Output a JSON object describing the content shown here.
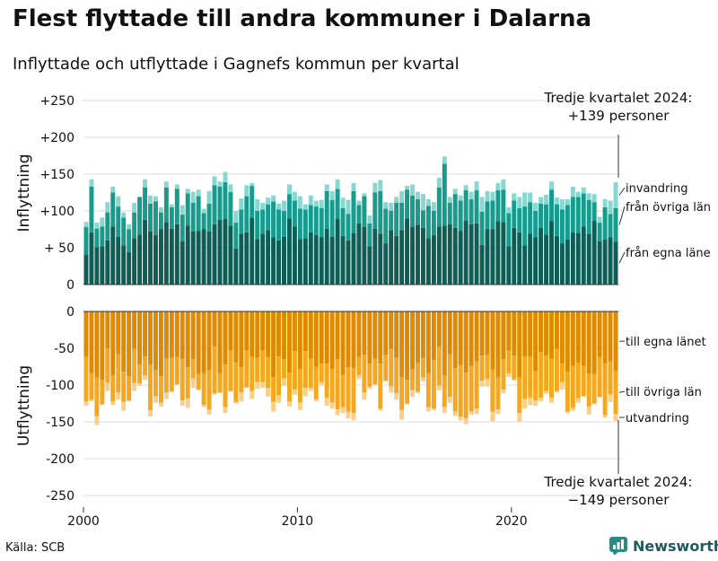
{
  "title": "Flest flyttade till andra kommuner i Dalarna",
  "subtitle": "Inflyttade och utflyttade i Gagnefs kommun per kvartal",
  "source": "Källa: SCB",
  "brand": "Newsworthy",
  "chart_data": {
    "type": "bar",
    "stacked": true,
    "x_start_year": 2000,
    "quarters_per_year": 4,
    "xticks": [
      "2000",
      "2010",
      "2020"
    ],
    "top_panel": {
      "ylabel": "Inflyttning",
      "ylim": [
        0,
        250
      ],
      "yticks": [
        "0",
        "+ 50",
        "+100",
        "+150",
        "+200",
        "+250"
      ],
      "annotation_line1": "Tredje kvartalet 2024:",
      "annotation_line2": "+139 personer",
      "series": [
        {
          "name": "från egna läne",
          "color": "#0e5e56",
          "values": [
            41,
            71,
            51,
            52,
            60,
            79,
            65,
            53,
            44,
            63,
            68,
            88,
            72,
            67,
            75,
            85,
            76,
            82,
            59,
            80,
            72,
            73,
            75,
            72,
            82,
            88,
            89,
            80,
            49,
            69,
            71,
            91,
            62,
            69,
            74,
            64,
            60,
            65,
            90,
            79,
            62,
            63,
            71,
            67,
            64,
            76,
            65,
            89,
            66,
            60,
            70,
            83,
            78,
            52,
            76,
            69,
            56,
            74,
            66,
            74,
            90,
            78,
            81,
            77,
            63,
            67,
            79,
            80,
            82,
            77,
            73,
            87,
            82,
            83,
            54,
            75,
            75,
            86,
            85,
            52,
            77,
            71,
            53,
            69,
            64,
            77,
            68,
            86,
            66,
            56,
            61,
            71,
            70,
            79,
            69,
            87,
            59,
            61,
            64,
            58
          ]
        },
        {
          "name": "från övriga län",
          "color": "#179b8c",
          "values": [
            37,
            62,
            25,
            27,
            38,
            46,
            41,
            38,
            31,
            35,
            51,
            44,
            38,
            46,
            23,
            47,
            29,
            48,
            36,
            44,
            39,
            47,
            22,
            38,
            53,
            45,
            50,
            46,
            35,
            33,
            49,
            43,
            38,
            33,
            35,
            49,
            42,
            35,
            33,
            35,
            41,
            39,
            37,
            39,
            40,
            51,
            50,
            41,
            38,
            36,
            57,
            25,
            42,
            31,
            49,
            58,
            47,
            26,
            45,
            37,
            39,
            43,
            35,
            24,
            44,
            33,
            53,
            84,
            29,
            46,
            41,
            41,
            34,
            45,
            45,
            38,
            39,
            42,
            44,
            45,
            37,
            33,
            53,
            43,
            36,
            33,
            41,
            43,
            43,
            46,
            47,
            48,
            49,
            45,
            46,
            25,
            25,
            44,
            32,
            46
          ]
        },
        {
          "name": "invandring",
          "color": "#88d8cf",
          "values": [
            7,
            10,
            8,
            12,
            14,
            8,
            14,
            7,
            7,
            13,
            0,
            11,
            11,
            7,
            7,
            8,
            4,
            6,
            13,
            6,
            15,
            9,
            6,
            17,
            12,
            7,
            14,
            10,
            16,
            15,
            15,
            4,
            16,
            9,
            9,
            8,
            8,
            14,
            13,
            12,
            17,
            7,
            13,
            8,
            11,
            9,
            12,
            13,
            14,
            19,
            11,
            6,
            4,
            11,
            13,
            15,
            9,
            11,
            8,
            16,
            5,
            15,
            10,
            22,
            9,
            12,
            13,
            10,
            8,
            7,
            7,
            7,
            10,
            12,
            20,
            14,
            12,
            10,
            14,
            8,
            10,
            15,
            19,
            13,
            11,
            9,
            13,
            11,
            9,
            14,
            8,
            14,
            7,
            8,
            9,
            11,
            8,
            11,
            18,
            35
          ]
        }
      ]
    },
    "bottom_panel": {
      "ylabel": "Utflyttning",
      "ylim": [
        -250,
        0
      ],
      "yticks": [
        "0",
        "-50",
        "-100",
        "-150",
        "-200",
        "-250"
      ],
      "annotation_line1": "Tredje kvartalet 2024:",
      "annotation_line2": "−149 personer",
      "series": [
        {
          "name": "till egna länet",
          "color": "#e08a00",
          "values": [
            -62,
            -84,
            -90,
            -93,
            -50,
            -87,
            -58,
            -82,
            -88,
            -51,
            -72,
            -61,
            -72,
            -80,
            -88,
            -64,
            -63,
            -62,
            -64,
            -76,
            -65,
            -85,
            -84,
            -80,
            -48,
            -84,
            -72,
            -53,
            -69,
            -76,
            -53,
            -62,
            -63,
            -53,
            -62,
            -89,
            -61,
            -65,
            -83,
            -54,
            -78,
            -54,
            -64,
            -75,
            -71,
            -71,
            -78,
            -65,
            -86,
            -76,
            -77,
            -62,
            -59,
            -71,
            -64,
            -71,
            -59,
            -51,
            -63,
            -89,
            -93,
            -79,
            -70,
            -63,
            -84,
            -66,
            -48,
            -87,
            -58,
            -77,
            -73,
            -83,
            -74,
            -68,
            -60,
            -59,
            -79,
            -90,
            -65,
            -53,
            -60,
            -89,
            -61,
            -61,
            -81,
            -55,
            -60,
            -64,
            -51,
            -71,
            -82,
            -74,
            -70,
            -74,
            -85,
            -85,
            -62,
            -71,
            -68,
            -81
          ]
        },
        {
          "name": "till övriga län",
          "color": "#f5a81f",
          "values": [
            -60,
            -36,
            -52,
            -33,
            -47,
            -35,
            -52,
            -41,
            -33,
            -46,
            -26,
            -26,
            -62,
            -35,
            -36,
            -46,
            -45,
            -37,
            -57,
            -42,
            -26,
            -21,
            -43,
            -53,
            -63,
            -26,
            -58,
            -55,
            -54,
            -34,
            -50,
            -46,
            -33,
            -43,
            -42,
            -34,
            -53,
            -26,
            -39,
            -52,
            -46,
            -50,
            -40,
            -44,
            -25,
            -46,
            -46,
            -68,
            -44,
            -60,
            -61,
            -25,
            -51,
            -31,
            -35,
            -61,
            -35,
            -51,
            -48,
            -45,
            -32,
            -28,
            -39,
            -27,
            -46,
            -66,
            -53,
            -43,
            -58,
            -59,
            -70,
            -62,
            -62,
            -64,
            -34,
            -33,
            -57,
            -43,
            -41,
            -31,
            -32,
            -49,
            -58,
            -56,
            -40,
            -62,
            -48,
            -53,
            -57,
            -25,
            -54,
            -57,
            -48,
            -41,
            -44,
            -40,
            -54,
            -70,
            -45,
            -58
          ]
        },
        {
          "name": "utvandring",
          "color": "#f8cf8c",
          "values": [
            -6,
            -2,
            -12,
            -1,
            -11,
            -5,
            -10,
            -12,
            -1,
            -11,
            -3,
            -6,
            -9,
            -9,
            -5,
            -9,
            -2,
            -1,
            -7,
            -13,
            -13,
            -1,
            -3,
            -7,
            -2,
            -1,
            -8,
            -1,
            -2,
            -12,
            -1,
            -11,
            -9,
            -8,
            -12,
            -13,
            -10,
            -10,
            -7,
            -7,
            -10,
            -11,
            -4,
            -3,
            -4,
            -11,
            -8,
            -8,
            -8,
            -9,
            -10,
            -5,
            -10,
            -3,
            -1,
            -3,
            -1,
            -8,
            -9,
            -13,
            -1,
            -9,
            -2,
            -5,
            -6,
            -2,
            -6,
            -8,
            -8,
            -6,
            -5,
            -8,
            -4,
            -7,
            -8,
            -10,
            -13,
            -6,
            -5,
            -5,
            -2,
            -12,
            -13,
            -10,
            -7,
            -5,
            -4,
            -7,
            -2,
            -10,
            -2,
            -4,
            -6,
            -1,
            -11,
            -1,
            -1,
            -3,
            -10,
            -10
          ]
        }
      ]
    }
  }
}
